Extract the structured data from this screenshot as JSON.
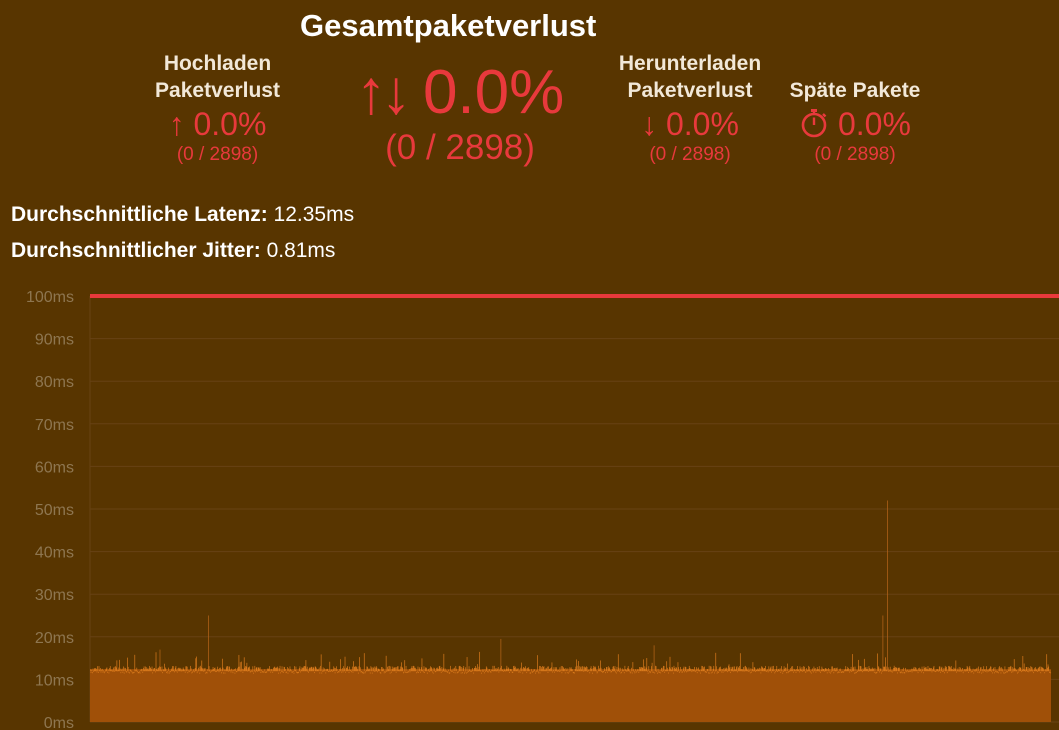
{
  "title": "Gesamtpaketverlust",
  "upload": {
    "label_line1": "Hochladen",
    "label_line2": "Paketverlust",
    "arrow": "↑",
    "value": "0.0%",
    "count": "(0 / 2898)"
  },
  "total": {
    "arrow": "↑↓",
    "value": "0.0%",
    "count": "(0 / 2898)"
  },
  "download": {
    "label_line1": "Herunterladen",
    "label_line2": "Paketverlust",
    "arrow": "↓",
    "value": "0.0%",
    "count": "(0 / 2898)"
  },
  "late": {
    "label": "Späte Pakete",
    "icon": "stopwatch-icon",
    "value": "0.0%",
    "count": "(0 / 2898)"
  },
  "metrics": {
    "latency_label": "Durchschnittliche Latenz:",
    "latency_value": "12.35ms",
    "jitter_label": "Durchschnittlicher Jitter:",
    "jitter_value": "0.81ms"
  },
  "colors": {
    "background": "#583500",
    "accent_red": "#e8393c",
    "bar_fill": "#a05008",
    "bar_top": "#d97a1c"
  },
  "chart_data": {
    "type": "bar",
    "y_unit": "ms",
    "ylim": [
      0,
      100
    ],
    "y_ticks": [
      "0ms",
      "10ms",
      "20ms",
      "30ms",
      "40ms",
      "50ms",
      "60ms",
      "70ms",
      "80ms",
      "90ms",
      "100ms"
    ],
    "threshold_line": 100,
    "sample_count": 2898,
    "baseline_value": 12.4,
    "spikes": [
      {
        "index": 356,
        "value": 25
      },
      {
        "index": 1238,
        "value": 19.5
      },
      {
        "index": 1925,
        "value": 19
      },
      {
        "index": 2390,
        "value": 25
      },
      {
        "index": 2404,
        "value": 52
      },
      {
        "index": 2463,
        "value": 22
      },
      {
        "index": 1700,
        "value": 18
      },
      {
        "index": 210,
        "value": 17
      }
    ],
    "grid": true
  }
}
